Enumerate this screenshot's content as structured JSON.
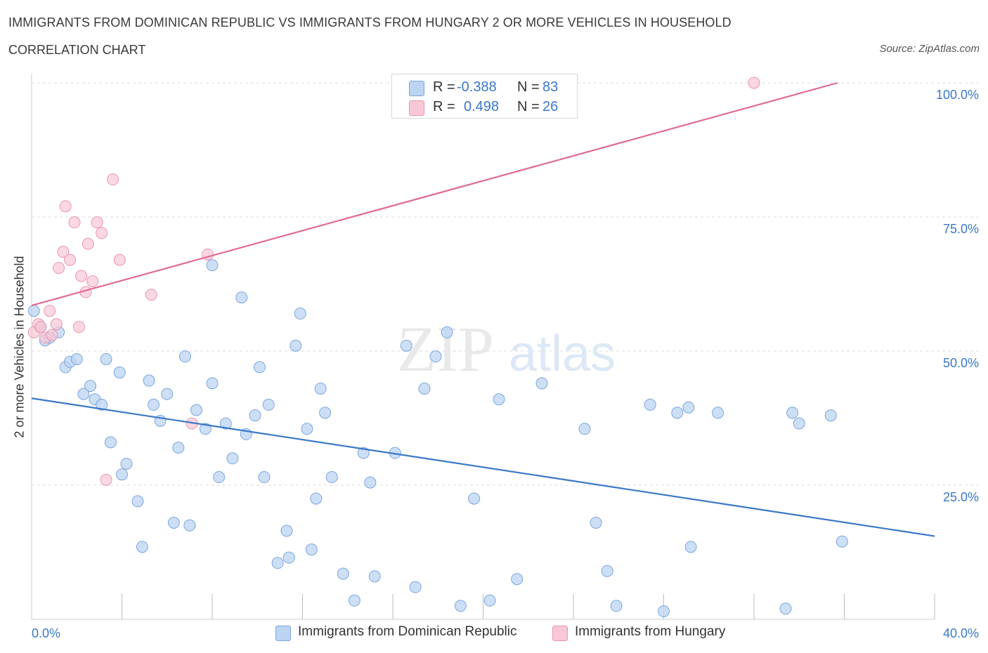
{
  "title": "IMMIGRANTS FROM DOMINICAN REPUBLIC VS IMMIGRANTS FROM HUNGARY 2 OR MORE VEHICLES IN HOUSEHOLD",
  "subtitle": "CORRELATION CHART",
  "source": "Source: ZipAtlas.com",
  "watermark": {
    "zip": "ZIP",
    "atlas": "atlas"
  },
  "colors": {
    "blue_fill": "#bcd4f2",
    "blue_stroke": "#7aa6de",
    "blue_line": "#3a78c9",
    "pink_fill": "#f8c8d6",
    "pink_stroke": "#e994b0",
    "pink_line": "#e06a94",
    "axis_text": "#3a78c9",
    "grid": "#dddddd"
  },
  "legend_top": [
    {
      "r_label": "R =",
      "r_value": "-0.388",
      "n_label": "N =",
      "n_value": "83"
    },
    {
      "r_label": "R =",
      "r_value": "0.498",
      "n_label": "N =",
      "n_value": "26"
    }
  ],
  "legend_bottom": [
    "Immigrants from Dominican Republic",
    "Immigrants from Hungary"
  ],
  "chart_data": {
    "type": "scatter",
    "title": "IMMIGRANTS FROM DOMINICAN REPUBLIC VS IMMIGRANTS FROM HUNGARY 2 OR MORE VEHICLES IN HOUSEHOLD",
    "xlabel": "",
    "ylabel": "2 or more Vehicles in Household",
    "xlim": [
      0,
      40
    ],
    "ylim": [
      0,
      100
    ],
    "x_tick_labels": [
      "0.0%",
      "40.0%"
    ],
    "y_tick_labels": [
      "100.0%",
      "75.0%",
      "50.0%",
      "25.0%"
    ],
    "y_ticks": [
      100,
      75,
      50,
      25
    ],
    "grid": true,
    "legend_placement": "top-center",
    "series": [
      {
        "name": "Immigrants from Dominican Republic",
        "r": -0.388,
        "n": 83,
        "trend": [
          [
            0,
            41.2
          ],
          [
            40,
            15.5
          ]
        ],
        "points": [
          [
            0.1,
            57.5
          ],
          [
            0.4,
            54.5
          ],
          [
            0.6,
            52
          ],
          [
            0.8,
            52.5
          ],
          [
            1.2,
            53.5
          ],
          [
            1.5,
            47
          ],
          [
            1.7,
            48
          ],
          [
            2.0,
            48.5
          ],
          [
            2.3,
            42
          ],
          [
            2.6,
            43.5
          ],
          [
            2.8,
            41
          ],
          [
            3.1,
            40
          ],
          [
            3.3,
            48.5
          ],
          [
            3.5,
            33
          ],
          [
            3.9,
            46
          ],
          [
            4.2,
            29
          ],
          [
            4.0,
            27
          ],
          [
            4.7,
            22
          ],
          [
            4.9,
            13.5
          ],
          [
            5.2,
            44.5
          ],
          [
            5.4,
            40
          ],
          [
            5.7,
            37
          ],
          [
            6.0,
            42
          ],
          [
            6.3,
            18
          ],
          [
            6.5,
            32
          ],
          [
            6.8,
            49
          ],
          [
            7.0,
            17.5
          ],
          [
            7.3,
            39
          ],
          [
            7.7,
            35.5
          ],
          [
            8.0,
            44
          ],
          [
            8.3,
            26.5
          ],
          [
            8.0,
            66
          ],
          [
            8.6,
            36.5
          ],
          [
            8.9,
            30
          ],
          [
            9.3,
            60
          ],
          [
            9.5,
            34.5
          ],
          [
            9.9,
            38
          ],
          [
            10.1,
            47
          ],
          [
            10.3,
            26.5
          ],
          [
            10.5,
            40
          ],
          [
            10.9,
            10.5
          ],
          [
            11.3,
            16.5
          ],
          [
            11.4,
            11.5
          ],
          [
            11.7,
            51
          ],
          [
            11.9,
            57
          ],
          [
            12.2,
            35.5
          ],
          [
            12.4,
            13
          ],
          [
            12.6,
            22.5
          ],
          [
            12.8,
            43
          ],
          [
            13.0,
            38.5
          ],
          [
            13.3,
            26.5
          ],
          [
            13.8,
            8.5
          ],
          [
            14.3,
            3.5
          ],
          [
            14.7,
            31
          ],
          [
            15.0,
            25.5
          ],
          [
            15.2,
            8
          ],
          [
            16.1,
            31
          ],
          [
            16.6,
            51
          ],
          [
            17.0,
            6
          ],
          [
            17.4,
            43
          ],
          [
            17.9,
            49
          ],
          [
            18.4,
            53.5
          ],
          [
            19.0,
            2.5
          ],
          [
            19.6,
            22.5
          ],
          [
            20.3,
            3.5
          ],
          [
            20.7,
            41
          ],
          [
            21.5,
            7.5
          ],
          [
            22.6,
            44
          ],
          [
            24.5,
            35.5
          ],
          [
            25.0,
            18
          ],
          [
            25.5,
            9
          ],
          [
            25.9,
            2.5
          ],
          [
            27.4,
            40
          ],
          [
            28.0,
            1.5
          ],
          [
            28.6,
            38.5
          ],
          [
            29.1,
            39.5
          ],
          [
            29.2,
            13.5
          ],
          [
            30.4,
            38.5
          ],
          [
            33.4,
            2
          ],
          [
            33.7,
            38.5
          ],
          [
            34.0,
            36.5
          ],
          [
            35.4,
            38
          ],
          [
            35.9,
            14.5
          ]
        ]
      },
      {
        "name": "Immigrants from Hungary",
        "r": 0.498,
        "n": 26,
        "trend": [
          [
            0,
            58.5
          ],
          [
            35.7,
            100
          ]
        ],
        "points": [
          [
            0.1,
            53.5
          ],
          [
            0.3,
            55
          ],
          [
            0.4,
            54.5
          ],
          [
            0.6,
            52.5
          ],
          [
            0.8,
            57.5
          ],
          [
            0.9,
            53
          ],
          [
            1.1,
            55
          ],
          [
            1.2,
            65.5
          ],
          [
            1.4,
            68.5
          ],
          [
            1.5,
            77
          ],
          [
            1.7,
            67
          ],
          [
            1.9,
            74
          ],
          [
            2.1,
            54.5
          ],
          [
            2.2,
            64
          ],
          [
            2.4,
            61
          ],
          [
            2.5,
            70
          ],
          [
            2.7,
            63
          ],
          [
            2.9,
            74
          ],
          [
            3.1,
            72
          ],
          [
            3.3,
            26
          ],
          [
            3.6,
            82
          ],
          [
            3.9,
            67
          ],
          [
            5.3,
            60.5
          ],
          [
            7.1,
            36.5
          ],
          [
            7.8,
            68
          ],
          [
            32.0,
            100
          ]
        ]
      }
    ]
  }
}
